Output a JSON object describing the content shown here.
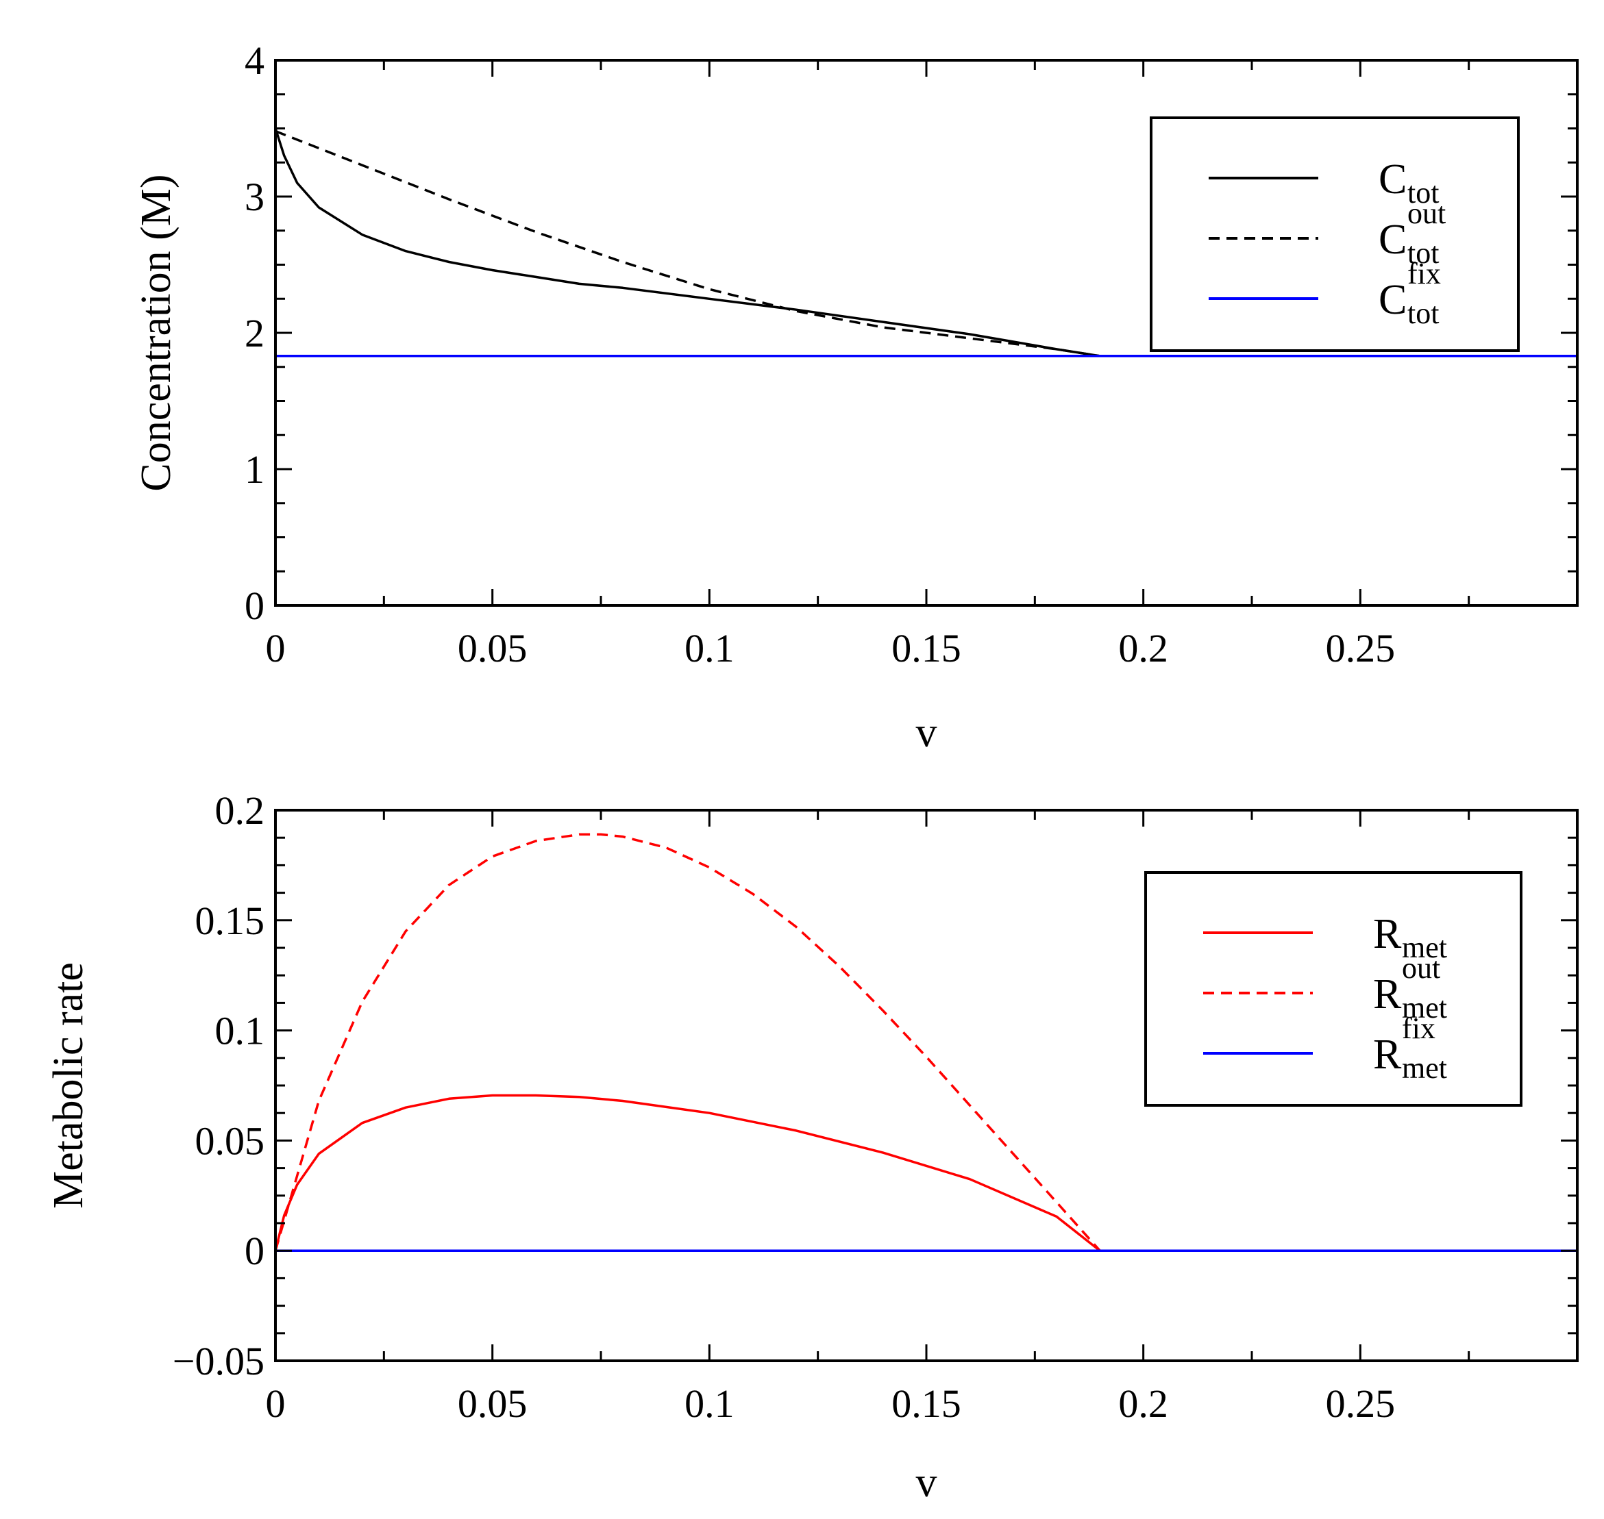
{
  "chart_data": [
    {
      "type": "line",
      "title": "",
      "xlabel": "v",
      "ylabel": "Concentration (M)",
      "xlim": [
        0,
        0.3
      ],
      "ylim": [
        0,
        4
      ],
      "xticks": [
        0,
        0.05,
        0.1,
        0.15,
        0.2,
        0.25
      ],
      "xtick_labels": [
        "0",
        "0.05",
        "0.1",
        "0.15",
        "0.2",
        "0.25"
      ],
      "yticks": [
        0,
        1,
        2,
        3,
        4
      ],
      "ytick_labels": [
        "0",
        "1",
        "2",
        "3",
        "4"
      ],
      "legend_position": "top-right",
      "series": [
        {
          "name": "C_tot",
          "label_main": "C",
          "label_sub": "tot",
          "label_sup": "",
          "color": "#000000",
          "dash": "solid",
          "x": [
            0,
            0.002,
            0.005,
            0.01,
            0.02,
            0.03,
            0.04,
            0.05,
            0.06,
            0.07,
            0.08,
            0.1,
            0.12,
            0.14,
            0.16,
            0.18,
            0.19,
            0.2,
            0.25,
            0.3
          ],
          "y": [
            3.5,
            3.3,
            3.1,
            2.92,
            2.72,
            2.6,
            2.52,
            2.46,
            2.41,
            2.36,
            2.33,
            2.25,
            2.17,
            2.08,
            1.99,
            1.88,
            1.83,
            1.83,
            1.83,
            1.83
          ]
        },
        {
          "name": "C_tot^out",
          "label_main": "C",
          "label_sub": "tot",
          "label_sup": "out",
          "color": "#000000",
          "dash": "dashed",
          "x": [
            0,
            0.02,
            0.04,
            0.06,
            0.08,
            0.1,
            0.12,
            0.14,
            0.16,
            0.18,
            0.19,
            0.2,
            0.25,
            0.3
          ],
          "y": [
            3.48,
            3.23,
            2.98,
            2.74,
            2.52,
            2.32,
            2.16,
            2.04,
            1.96,
            1.88,
            1.83,
            1.83,
            1.83,
            1.83
          ]
        },
        {
          "name": "C_tot^fix",
          "label_main": "C",
          "label_sub": "tot",
          "label_sup": "fix",
          "color": "#0000ff",
          "dash": "solid",
          "x": [
            0,
            0.3
          ],
          "y": [
            1.83,
            1.83
          ]
        }
      ]
    },
    {
      "type": "line",
      "title": "",
      "xlabel": "v",
      "ylabel": "Metabolic rate",
      "xlim": [
        0,
        0.3
      ],
      "ylim": [
        -0.05,
        0.2
      ],
      "xticks": [
        0,
        0.05,
        0.1,
        0.15,
        0.2,
        0.25
      ],
      "xtick_labels": [
        "0",
        "0.05",
        "0.1",
        "0.15",
        "0.2",
        "0.25"
      ],
      "yticks": [
        -0.05,
        0,
        0.05,
        0.1,
        0.15,
        0.2
      ],
      "ytick_labels": [
        "−0.05",
        "0",
        "0.05",
        "0.1",
        "0.15",
        "0.2"
      ],
      "legend_position": "right",
      "series": [
        {
          "name": "R_met",
          "label_main": "R",
          "label_sub": "met",
          "label_sup": "",
          "color": "#ff0000",
          "dash": "solid",
          "x": [
            0,
            0.002,
            0.005,
            0.01,
            0.02,
            0.03,
            0.04,
            0.05,
            0.06,
            0.07,
            0.08,
            0.1,
            0.12,
            0.14,
            0.16,
            0.18,
            0.19,
            0.2,
            0.25,
            0.3
          ],
          "y": [
            0,
            0.016,
            0.03,
            0.044,
            0.058,
            0.065,
            0.069,
            0.0705,
            0.0705,
            0.0698,
            0.068,
            0.0625,
            0.0545,
            0.0445,
            0.0325,
            0.0155,
            0,
            0,
            0,
            0
          ]
        },
        {
          "name": "R_met^out",
          "label_main": "R",
          "label_sub": "met",
          "label_sup": "out",
          "color": "#ff0000",
          "dash": "dashed",
          "x": [
            0,
            0.01,
            0.02,
            0.03,
            0.04,
            0.05,
            0.06,
            0.07,
            0.075,
            0.08,
            0.09,
            0.1,
            0.11,
            0.12,
            0.13,
            0.14,
            0.15,
            0.16,
            0.17,
            0.18,
            0.19,
            0.2,
            0.25,
            0.3
          ],
          "y": [
            0,
            0.068,
            0.113,
            0.145,
            0.166,
            0.179,
            0.186,
            0.189,
            0.189,
            0.188,
            0.183,
            0.174,
            0.162,
            0.147,
            0.129,
            0.109,
            0.088,
            0.066,
            0.044,
            0.022,
            0,
            0,
            0,
            0
          ]
        },
        {
          "name": "R_met^fix",
          "label_main": "R",
          "label_sub": "met",
          "label_sup": "fix",
          "color": "#0000ff",
          "dash": "solid",
          "x": [
            0,
            0.3
          ],
          "y": [
            0,
            0
          ]
        }
      ]
    }
  ]
}
